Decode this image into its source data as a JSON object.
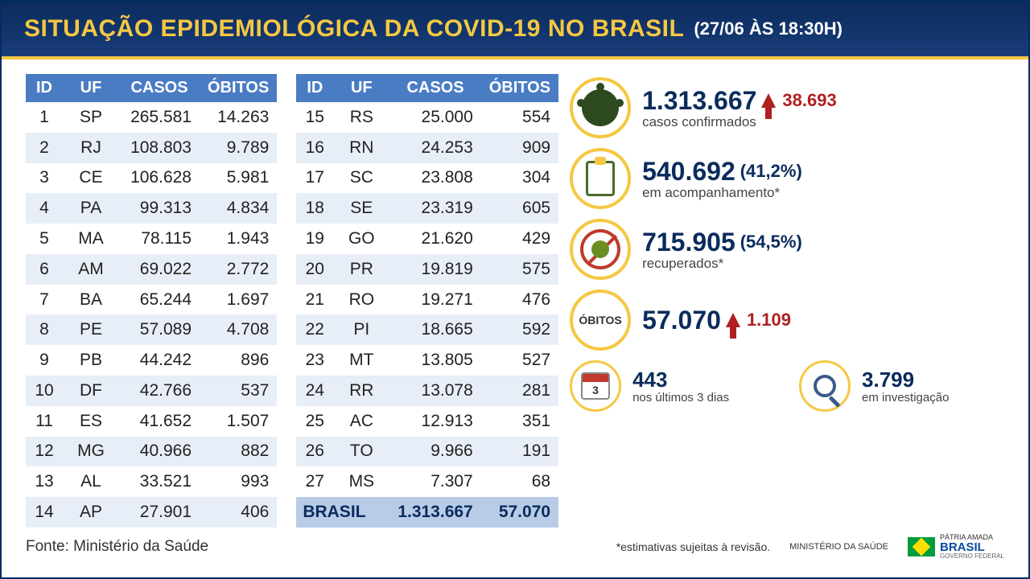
{
  "header": {
    "title": "SITUAÇÃO EPIDEMIOLÓGICA DA COVID-19 NO BRASIL",
    "timestamp": "(27/06 ÀS 18:30H)"
  },
  "colors": {
    "header_bg_top": "#0a2b5c",
    "header_bg_bottom": "#1a3d7a",
    "accent_yellow": "#f5c842",
    "table_header": "#4a7cc4",
    "row_alt": "#e8eef7",
    "total_row": "#b8cce8",
    "value_navy": "#0a2b5c",
    "increase_red": "#b02020"
  },
  "table": {
    "columns": [
      "ID",
      "UF",
      "CASOS",
      "ÓBITOS"
    ],
    "rows_left": [
      [
        "1",
        "SP",
        "265.581",
        "14.263"
      ],
      [
        "2",
        "RJ",
        "108.803",
        "9.789"
      ],
      [
        "3",
        "CE",
        "106.628",
        "5.981"
      ],
      [
        "4",
        "PA",
        "99.313",
        "4.834"
      ],
      [
        "5",
        "MA",
        "78.115",
        "1.943"
      ],
      [
        "6",
        "AM",
        "69.022",
        "2.772"
      ],
      [
        "7",
        "BA",
        "65.244",
        "1.697"
      ],
      [
        "8",
        "PE",
        "57.089",
        "4.708"
      ],
      [
        "9",
        "PB",
        "44.242",
        "896"
      ],
      [
        "10",
        "DF",
        "42.766",
        "537"
      ],
      [
        "11",
        "ES",
        "41.652",
        "1.507"
      ],
      [
        "12",
        "MG",
        "40.966",
        "882"
      ],
      [
        "13",
        "AL",
        "33.521",
        "993"
      ],
      [
        "14",
        "AP",
        "27.901",
        "406"
      ]
    ],
    "rows_right": [
      [
        "15",
        "RS",
        "25.000",
        "554"
      ],
      [
        "16",
        "RN",
        "24.253",
        "909"
      ],
      [
        "17",
        "SC",
        "23.808",
        "304"
      ],
      [
        "18",
        "SE",
        "23.319",
        "605"
      ],
      [
        "19",
        "GO",
        "21.620",
        "429"
      ],
      [
        "20",
        "PR",
        "19.819",
        "575"
      ],
      [
        "21",
        "RO",
        "19.271",
        "476"
      ],
      [
        "22",
        "PI",
        "18.665",
        "592"
      ],
      [
        "23",
        "MT",
        "13.805",
        "527"
      ],
      [
        "24",
        "RR",
        "13.078",
        "281"
      ],
      [
        "25",
        "AC",
        "12.913",
        "351"
      ],
      [
        "26",
        "TO",
        "9.966",
        "191"
      ],
      [
        "27",
        "MS",
        "7.307",
        "68"
      ]
    ],
    "total": [
      "BRASIL",
      "",
      "1.313.667",
      "57.070"
    ]
  },
  "stats": {
    "confirmed": {
      "value": "1.313.667",
      "increase": "38.693",
      "label": "casos confirmados"
    },
    "monitoring": {
      "value": "540.692",
      "pct": "(41,2%)",
      "label": "em acompanhamento*"
    },
    "recovered": {
      "value": "715.905",
      "pct": "(54,5%)",
      "label": "recuperados*"
    },
    "deaths": {
      "icon_text": "ÓBITOS",
      "value": "57.070",
      "increase": "1.109"
    },
    "last3days": {
      "value": "443",
      "label": "nos últimos 3 dias"
    },
    "investigation": {
      "value": "3.799",
      "label": "em investigação"
    }
  },
  "footer": {
    "source": "Fonte: Ministério da Saúde",
    "note": "*estimativas sujeitas à revisão.",
    "logo_ms": "MINISTÉRIO DA\nSAÚDE",
    "logo_br_top": "PÁTRIA AMADA",
    "logo_br_main": "BRASIL",
    "logo_br_sub": "GOVERNO FEDERAL"
  }
}
